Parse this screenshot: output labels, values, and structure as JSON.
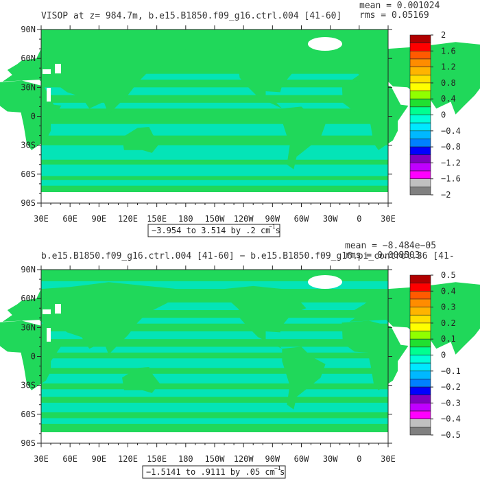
{
  "chart_data": [
    {
      "type": "heatmap",
      "title": "VISOP at z= 984.7m, b.e15.B1850.f09_g16.ctrl.004 [41-60]",
      "stats": {
        "mean": "mean = 0.001024",
        "rms": "rms = 0.05169"
      },
      "range_label": "−3.954 to 3.514 by .2 cm s",
      "range_unit_exp": "−1",
      "x_ticks": [
        "30E",
        "60E",
        "90E",
        "120E",
        "150E",
        "180",
        "150W",
        "120W",
        "90W",
        "60W",
        "30W",
        "0",
        "30E"
      ],
      "y_ticks": [
        "90N",
        "60N",
        "30N",
        "0",
        "30S",
        "60S",
        "90S"
      ],
      "colorbar_labels": [
        "2",
        "1.6",
        "1.2",
        "0.8",
        "0.4",
        "0",
        "−0.4",
        "−0.8",
        "−1.2",
        "−1.6",
        "−2"
      ],
      "colorbar_colors": [
        "#b00000",
        "#ff0000",
        "#ff5a00",
        "#ff8c00",
        "#ffb400",
        "#ffe000",
        "#ffff00",
        "#90ff00",
        "#20e030",
        "#00ff90",
        "#00ffd8",
        "#00e8ff",
        "#00b8ff",
        "#0080ff",
        "#0000ff",
        "#8000c0",
        "#c000ff",
        "#ff00ff",
        "#c0c0c0",
        "#808080"
      ],
      "ocean_color": "#20d85a",
      "land_color": "#00e6c8"
    },
    {
      "type": "heatmap",
      "title": "b.e15.B1850.f09_g16.ctrl.004 [41-60] − b.e15.B1850.f09_g16.pi_control.36 [41-",
      "stats": {
        "mean": "mean = −8.484e−05",
        "rms": "rms = 0.008503"
      },
      "range_label": "−1.5141 to .9111 by .05 cm s",
      "range_unit_exp": "−1",
      "x_ticks": [
        "30E",
        "60E",
        "90E",
        "120E",
        "150E",
        "180",
        "150W",
        "120W",
        "90W",
        "60W",
        "30W",
        "0",
        "30E"
      ],
      "y_ticks": [
        "90N",
        "60N",
        "30N",
        "0",
        "30S",
        "60S",
        "90S"
      ],
      "colorbar_labels": [
        "0.5",
        "0.4",
        "0.3",
        "0.2",
        "0.1",
        "0",
        "−0.1",
        "−0.2",
        "−0.3",
        "−0.4",
        "−0.5"
      ],
      "colorbar_colors": [
        "#b00000",
        "#ff0000",
        "#ff5a00",
        "#ff8c00",
        "#ffb400",
        "#ffe000",
        "#ffff00",
        "#90ff00",
        "#20e030",
        "#00ff90",
        "#00ffd8",
        "#00e8ff",
        "#00b8ff",
        "#0080ff",
        "#0000ff",
        "#8000c0",
        "#c000ff",
        "#ff00ff",
        "#c0c0c0",
        "#808080"
      ],
      "ocean_color": "#20d85a",
      "land_color": "#00e6c8"
    }
  ]
}
